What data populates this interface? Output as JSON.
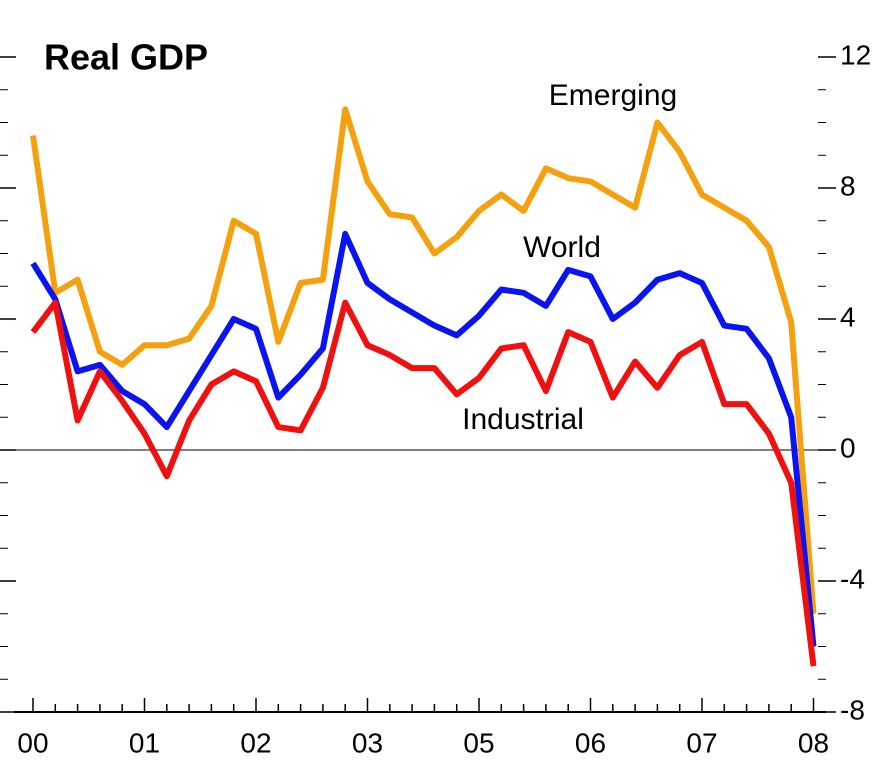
{
  "chart_data": {
    "type": "line",
    "title": "Real GDP",
    "categories": [
      "00",
      null,
      null,
      null,
      null,
      "01",
      null,
      null,
      null,
      null,
      "02",
      null,
      null,
      null,
      null,
      "03",
      null,
      null,
      null,
      null,
      "05",
      null,
      null,
      null,
      null,
      "06",
      null,
      null,
      null,
      null,
      "07",
      null,
      null,
      null,
      null,
      "08"
    ],
    "series": [
      {
        "name": "Emerging",
        "color": "#f5a00f",
        "values": [
          9.6,
          4.8,
          5.2,
          3.0,
          2.6,
          3.2,
          3.2,
          3.4,
          4.4,
          7.0,
          6.6,
          3.3,
          5.1,
          5.2,
          10.4,
          8.2,
          7.2,
          7.1,
          6.0,
          6.5,
          7.3,
          7.8,
          7.3,
          8.6,
          8.3,
          8.2,
          7.8,
          7.4,
          10.0,
          9.1,
          7.8,
          7.4,
          7.0,
          6.2,
          3.9,
          -5.0
        ]
      },
      {
        "name": "World",
        "color": "#0a14f0",
        "values": [
          5.7,
          4.6,
          2.4,
          2.6,
          1.8,
          1.4,
          0.7,
          1.8,
          2.9,
          4.0,
          3.7,
          1.6,
          2.3,
          3.1,
          6.6,
          5.1,
          4.6,
          4.2,
          3.8,
          3.5,
          4.1,
          4.9,
          4.8,
          4.4,
          5.5,
          5.3,
          4.0,
          4.5,
          5.2,
          5.4,
          5.1,
          3.8,
          3.7,
          2.8,
          1.0,
          -6.0
        ]
      },
      {
        "name": "Industrial",
        "color": "#f01010",
        "values": [
          3.6,
          4.5,
          0.9,
          2.4,
          1.5,
          0.5,
          -0.8,
          0.9,
          2.0,
          2.4,
          2.1,
          0.7,
          0.6,
          1.9,
          4.5,
          3.2,
          2.9,
          2.5,
          2.5,
          1.7,
          2.2,
          3.1,
          3.2,
          1.8,
          3.6,
          3.3,
          1.6,
          2.7,
          1.9,
          2.9,
          3.3,
          1.4,
          1.4,
          0.5,
          -1.0,
          -6.6
        ]
      }
    ],
    "ylim": [
      -8,
      12
    ],
    "yticks": [
      -8,
      -4,
      0,
      4,
      8,
      12
    ]
  }
}
